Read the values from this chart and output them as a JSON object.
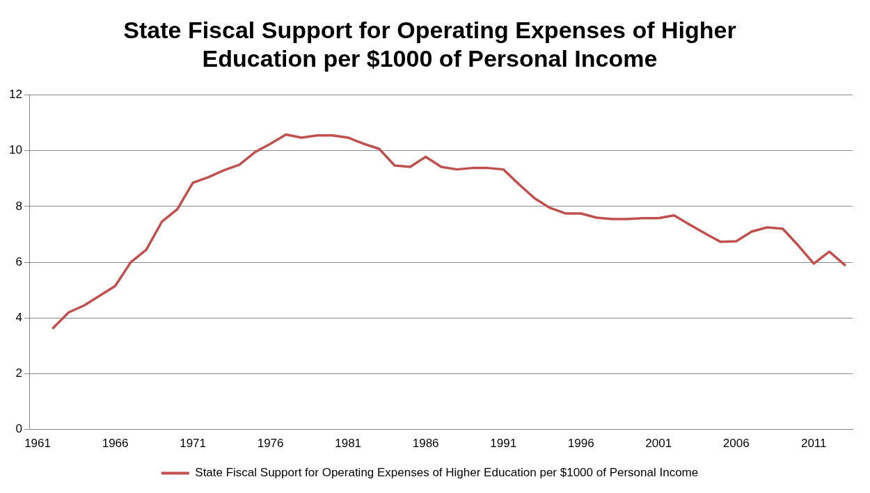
{
  "chart_data": {
    "type": "line",
    "title": "State Fiscal Support for Operating Expenses of Higher Education per $1000 of Personal Income",
    "categories": [
      "1961",
      null,
      null,
      null,
      null,
      "1966",
      null,
      null,
      null,
      null,
      "1971",
      null,
      null,
      null,
      null,
      "1976",
      null,
      null,
      null,
      null,
      "1981",
      null,
      null,
      null,
      null,
      "1986",
      null,
      null,
      null,
      null,
      "1991",
      null,
      null,
      null,
      null,
      "1996",
      null,
      null,
      null,
      null,
      "2001",
      null,
      null,
      null,
      null,
      "2006",
      null,
      null,
      null,
      null,
      "2011",
      null,
      null
    ],
    "series": [
      {
        "name": "State Fiscal Support for Operating Expenses of Higher Education per $1000 of Personal Income",
        "color": "#c0504d",
        "values": [
          null,
          3.64,
          4.2,
          4.45,
          4.8,
          5.15,
          6.0,
          6.45,
          7.45,
          7.9,
          8.85,
          9.05,
          9.3,
          9.5,
          9.95,
          10.25,
          10.58,
          10.47,
          10.55,
          10.55,
          10.47,
          10.25,
          10.07,
          9.47,
          9.42,
          9.78,
          9.42,
          9.33,
          9.38,
          9.38,
          9.33,
          8.8,
          8.3,
          7.95,
          7.75,
          7.75,
          7.6,
          7.55,
          7.55,
          7.58,
          7.58,
          7.68,
          7.35,
          7.03,
          6.73,
          6.75,
          7.1,
          7.25,
          7.2,
          6.6,
          5.95,
          6.38,
          5.9
        ]
      }
    ],
    "ylim": [
      0,
      12
    ],
    "yticks": [
      0,
      2,
      4,
      6,
      8,
      10,
      12
    ],
    "grid": "y",
    "legend": "bottom",
    "marker": "none",
    "line_style": "solid"
  }
}
